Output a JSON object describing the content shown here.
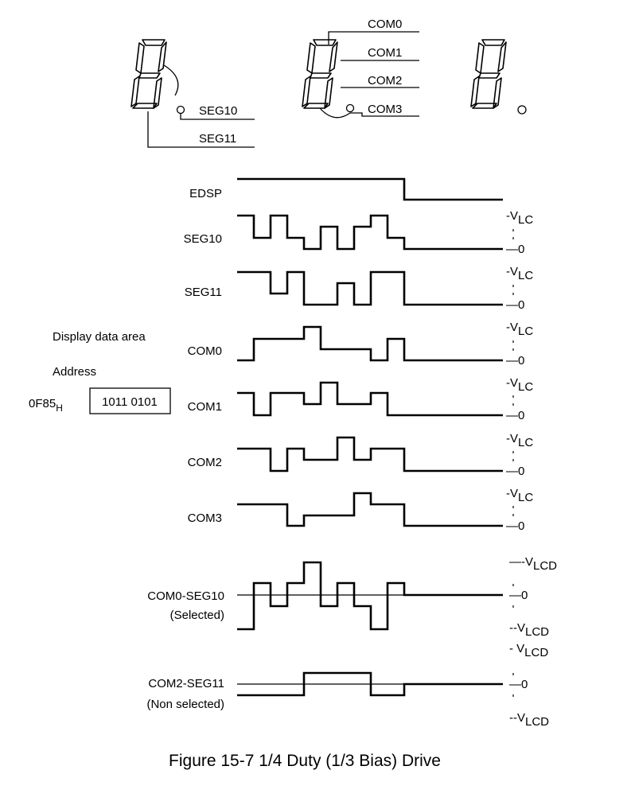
{
  "digits": {
    "labels": {
      "seg10": "SEG10",
      "seg11": "SEG11",
      "com0": "COM0",
      "com1": "COM1",
      "com2": "COM2",
      "com3": "COM3"
    }
  },
  "signals": {
    "edsp": "EDSP",
    "seg10": "SEG10",
    "seg11": "SEG11",
    "com0": "COM0",
    "com1": "COM1",
    "com2": "COM2",
    "com3": "COM3",
    "diff_selected": "COM0-SEG10",
    "diff_selected_note": "(Selected)",
    "diff_nonselected": "COM2-SEG11",
    "diff_nonselected_note": "(Non selected)"
  },
  "levels": {
    "vlc_main": "-V",
    "vlc_sub": "LC",
    "zero": "0",
    "vlcd_pos_main": "-V",
    "vlcd_sub": "LCD",
    "vlcd_neg_main": "--V",
    "vlcd_pos2_main": "- V"
  },
  "display_data": {
    "area_label": "Display data area",
    "address_label": "Address",
    "address_main": "0F85",
    "address_sub": "H",
    "value": "1011 0101"
  },
  "caption": "Figure 15-7  1/4 Duty (1/3 Bias) Drive"
}
